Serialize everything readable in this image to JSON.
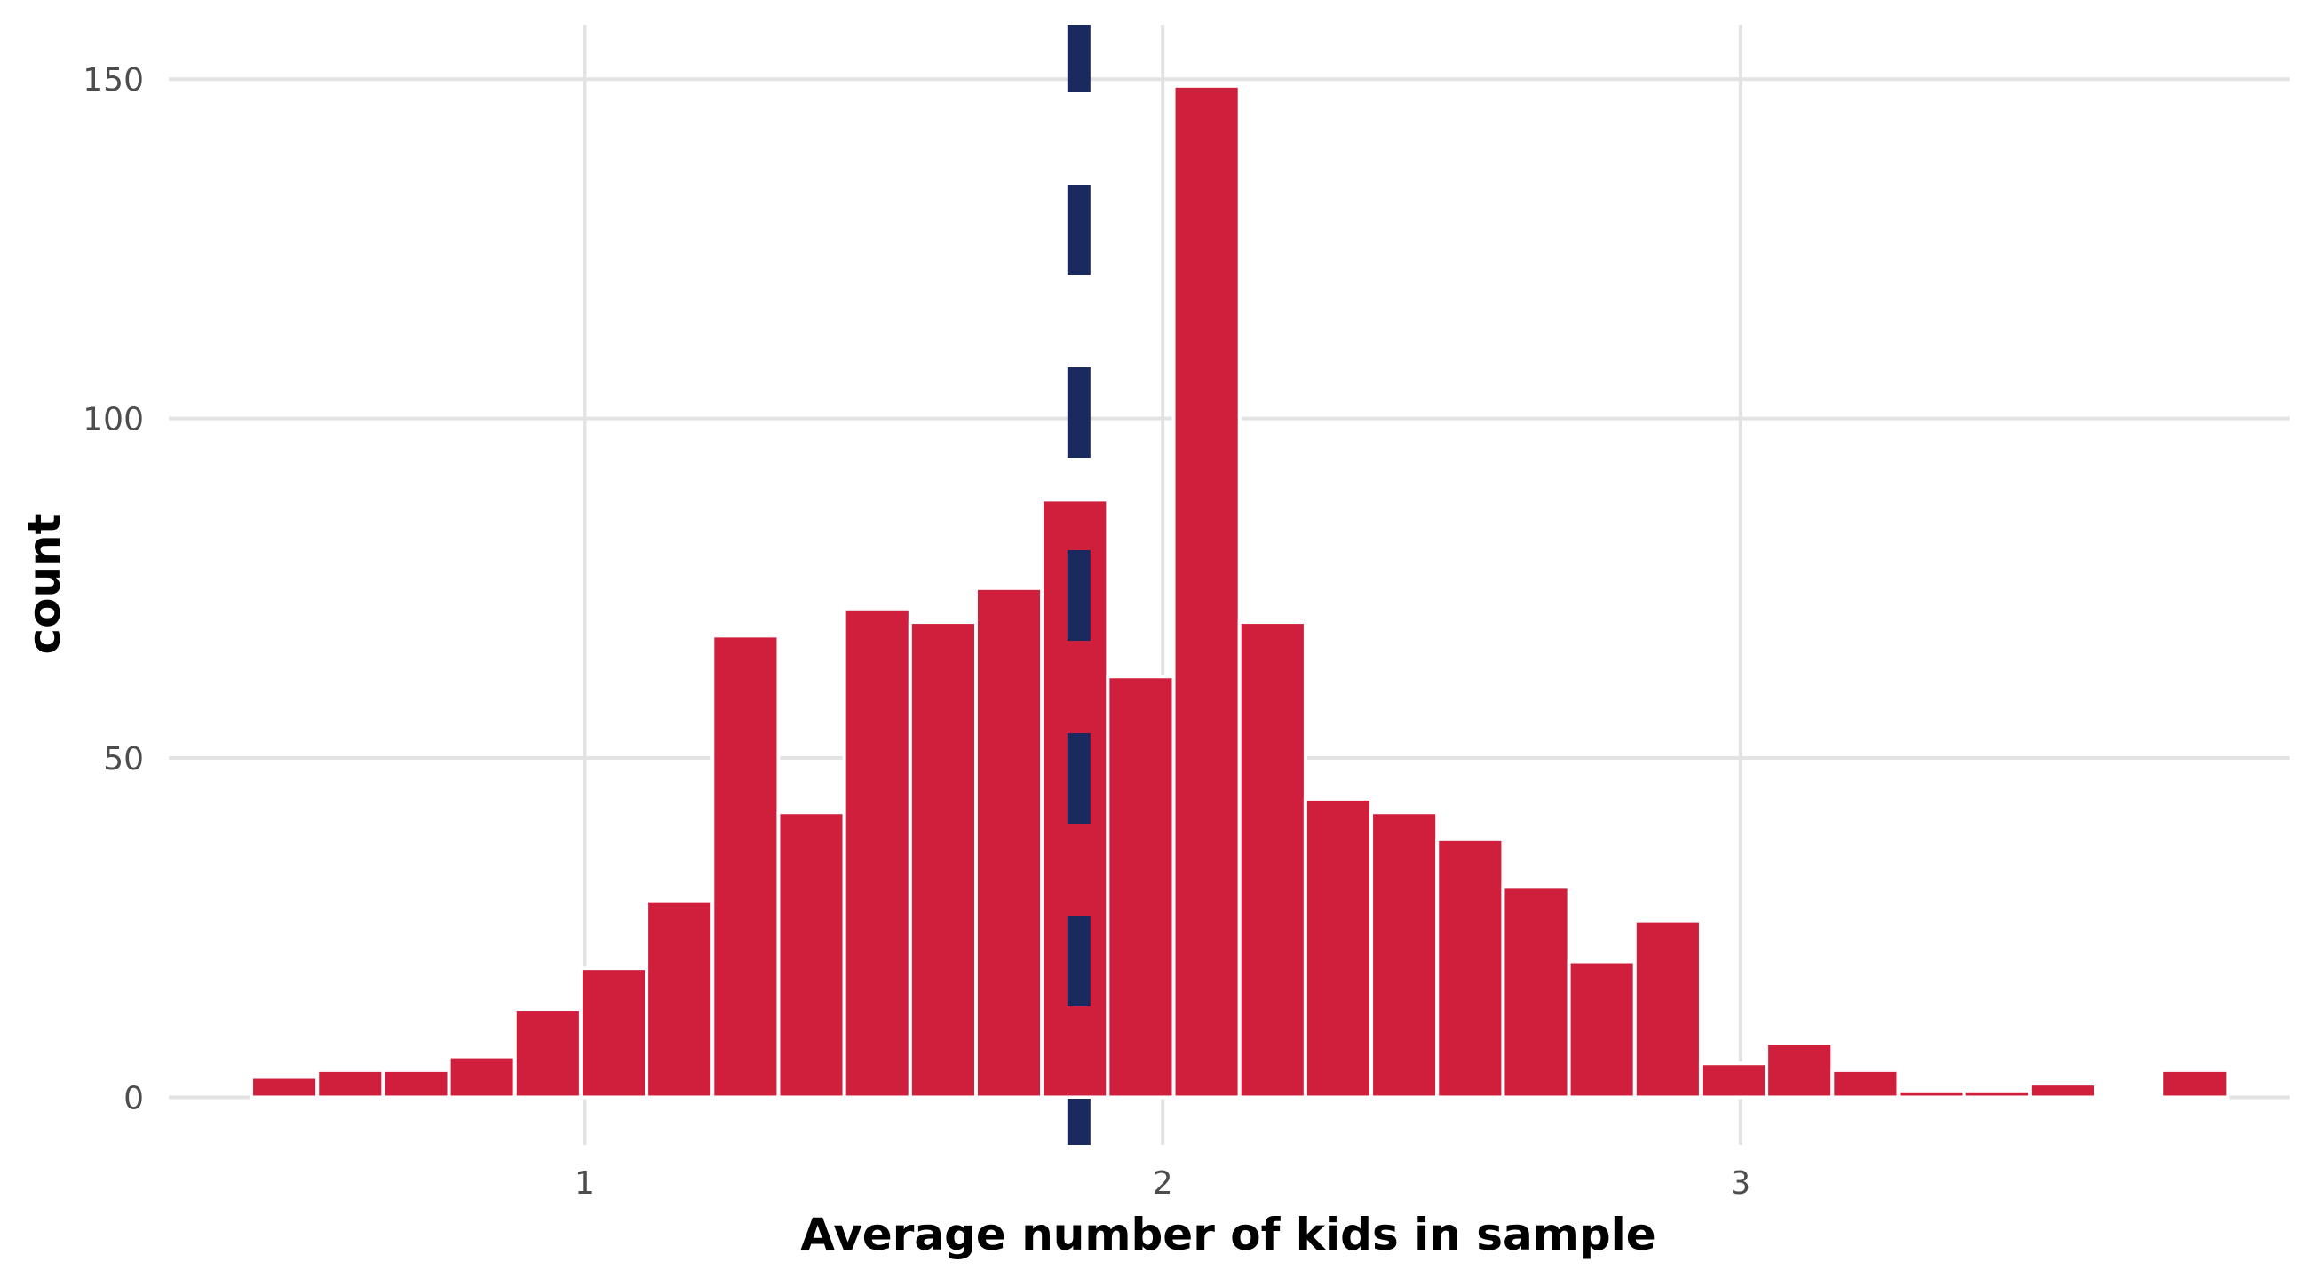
{
  "chart_data": {
    "type": "bar",
    "xlabel": "Average number of kids in sample",
    "ylabel": "count",
    "bin_width": 0.114,
    "bin_centers": [
      0.48,
      0.594,
      0.708,
      0.822,
      0.936,
      1.05,
      1.164,
      1.278,
      1.392,
      1.506,
      1.62,
      1.734,
      1.848,
      1.962,
      2.076,
      2.19,
      2.304,
      2.418,
      2.532,
      2.646,
      2.76,
      2.874,
      2.988,
      3.102,
      3.216,
      3.33,
      3.444,
      3.558,
      3.672,
      3.786
    ],
    "values": [
      3,
      4,
      4,
      6,
      13,
      19,
      29,
      68,
      42,
      72,
      70,
      75,
      88,
      62,
      149,
      70,
      44,
      42,
      38,
      31,
      20,
      26,
      5,
      8,
      4,
      1,
      1,
      2,
      0,
      4
    ],
    "reference_line": {
      "x": 1.855,
      "style": "dashed",
      "color": "#1a2a5e"
    },
    "xlim": [
      0.28,
      3.95
    ],
    "ylim": [
      -7,
      158
    ],
    "x_ticks": [
      1,
      2,
      3
    ],
    "x_tick_labels": [
      "1",
      "2",
      "3"
    ],
    "y_ticks": [
      0,
      50,
      100,
      150
    ],
    "y_tick_labels": [
      "0",
      "50",
      "100",
      "150"
    ],
    "grid": true,
    "colors": {
      "bar_fill": "#d01f3c",
      "bar_outline": "#ffffff",
      "grid": "#e3e3e3"
    }
  }
}
